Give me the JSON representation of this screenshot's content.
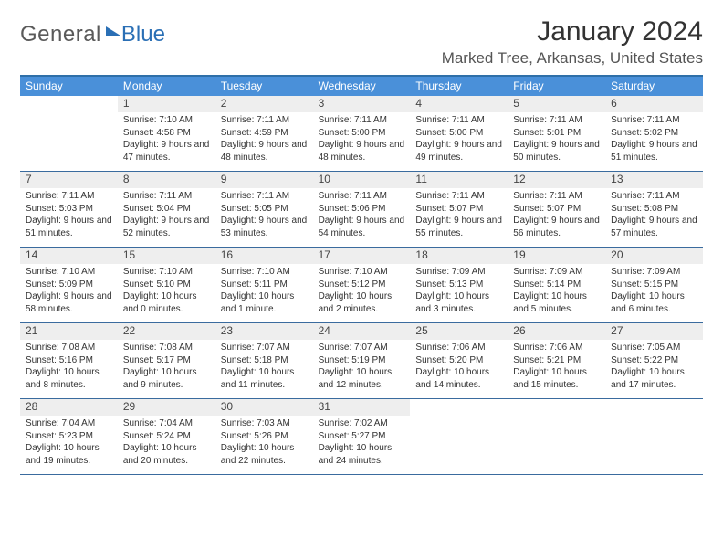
{
  "logo": {
    "part1": "General",
    "part2": "Blue"
  },
  "header": {
    "month_title": "January 2024",
    "location": "Marked Tree, Arkansas, United States"
  },
  "colors": {
    "header_bar": "#4a90d9",
    "border": "#3a6b9e",
    "date_bar_bg": "#eeeeee",
    "text": "#333333",
    "logo_gray": "#5a5a5a",
    "logo_blue": "#2a6fb5"
  },
  "day_names": [
    "Sunday",
    "Monday",
    "Tuesday",
    "Wednesday",
    "Thursday",
    "Friday",
    "Saturday"
  ],
  "weeks": [
    [
      {
        "date": "",
        "sunrise": "",
        "sunset": "",
        "daylight": ""
      },
      {
        "date": "1",
        "sunrise": "Sunrise: 7:10 AM",
        "sunset": "Sunset: 4:58 PM",
        "daylight": "Daylight: 9 hours and 47 minutes."
      },
      {
        "date": "2",
        "sunrise": "Sunrise: 7:11 AM",
        "sunset": "Sunset: 4:59 PM",
        "daylight": "Daylight: 9 hours and 48 minutes."
      },
      {
        "date": "3",
        "sunrise": "Sunrise: 7:11 AM",
        "sunset": "Sunset: 5:00 PM",
        "daylight": "Daylight: 9 hours and 48 minutes."
      },
      {
        "date": "4",
        "sunrise": "Sunrise: 7:11 AM",
        "sunset": "Sunset: 5:00 PM",
        "daylight": "Daylight: 9 hours and 49 minutes."
      },
      {
        "date": "5",
        "sunrise": "Sunrise: 7:11 AM",
        "sunset": "Sunset: 5:01 PM",
        "daylight": "Daylight: 9 hours and 50 minutes."
      },
      {
        "date": "6",
        "sunrise": "Sunrise: 7:11 AM",
        "sunset": "Sunset: 5:02 PM",
        "daylight": "Daylight: 9 hours and 51 minutes."
      }
    ],
    [
      {
        "date": "7",
        "sunrise": "Sunrise: 7:11 AM",
        "sunset": "Sunset: 5:03 PM",
        "daylight": "Daylight: 9 hours and 51 minutes."
      },
      {
        "date": "8",
        "sunrise": "Sunrise: 7:11 AM",
        "sunset": "Sunset: 5:04 PM",
        "daylight": "Daylight: 9 hours and 52 minutes."
      },
      {
        "date": "9",
        "sunrise": "Sunrise: 7:11 AM",
        "sunset": "Sunset: 5:05 PM",
        "daylight": "Daylight: 9 hours and 53 minutes."
      },
      {
        "date": "10",
        "sunrise": "Sunrise: 7:11 AM",
        "sunset": "Sunset: 5:06 PM",
        "daylight": "Daylight: 9 hours and 54 minutes."
      },
      {
        "date": "11",
        "sunrise": "Sunrise: 7:11 AM",
        "sunset": "Sunset: 5:07 PM",
        "daylight": "Daylight: 9 hours and 55 minutes."
      },
      {
        "date": "12",
        "sunrise": "Sunrise: 7:11 AM",
        "sunset": "Sunset: 5:07 PM",
        "daylight": "Daylight: 9 hours and 56 minutes."
      },
      {
        "date": "13",
        "sunrise": "Sunrise: 7:11 AM",
        "sunset": "Sunset: 5:08 PM",
        "daylight": "Daylight: 9 hours and 57 minutes."
      }
    ],
    [
      {
        "date": "14",
        "sunrise": "Sunrise: 7:10 AM",
        "sunset": "Sunset: 5:09 PM",
        "daylight": "Daylight: 9 hours and 58 minutes."
      },
      {
        "date": "15",
        "sunrise": "Sunrise: 7:10 AM",
        "sunset": "Sunset: 5:10 PM",
        "daylight": "Daylight: 10 hours and 0 minutes."
      },
      {
        "date": "16",
        "sunrise": "Sunrise: 7:10 AM",
        "sunset": "Sunset: 5:11 PM",
        "daylight": "Daylight: 10 hours and 1 minute."
      },
      {
        "date": "17",
        "sunrise": "Sunrise: 7:10 AM",
        "sunset": "Sunset: 5:12 PM",
        "daylight": "Daylight: 10 hours and 2 minutes."
      },
      {
        "date": "18",
        "sunrise": "Sunrise: 7:09 AM",
        "sunset": "Sunset: 5:13 PM",
        "daylight": "Daylight: 10 hours and 3 minutes."
      },
      {
        "date": "19",
        "sunrise": "Sunrise: 7:09 AM",
        "sunset": "Sunset: 5:14 PM",
        "daylight": "Daylight: 10 hours and 5 minutes."
      },
      {
        "date": "20",
        "sunrise": "Sunrise: 7:09 AM",
        "sunset": "Sunset: 5:15 PM",
        "daylight": "Daylight: 10 hours and 6 minutes."
      }
    ],
    [
      {
        "date": "21",
        "sunrise": "Sunrise: 7:08 AM",
        "sunset": "Sunset: 5:16 PM",
        "daylight": "Daylight: 10 hours and 8 minutes."
      },
      {
        "date": "22",
        "sunrise": "Sunrise: 7:08 AM",
        "sunset": "Sunset: 5:17 PM",
        "daylight": "Daylight: 10 hours and 9 minutes."
      },
      {
        "date": "23",
        "sunrise": "Sunrise: 7:07 AM",
        "sunset": "Sunset: 5:18 PM",
        "daylight": "Daylight: 10 hours and 11 minutes."
      },
      {
        "date": "24",
        "sunrise": "Sunrise: 7:07 AM",
        "sunset": "Sunset: 5:19 PM",
        "daylight": "Daylight: 10 hours and 12 minutes."
      },
      {
        "date": "25",
        "sunrise": "Sunrise: 7:06 AM",
        "sunset": "Sunset: 5:20 PM",
        "daylight": "Daylight: 10 hours and 14 minutes."
      },
      {
        "date": "26",
        "sunrise": "Sunrise: 7:06 AM",
        "sunset": "Sunset: 5:21 PM",
        "daylight": "Daylight: 10 hours and 15 minutes."
      },
      {
        "date": "27",
        "sunrise": "Sunrise: 7:05 AM",
        "sunset": "Sunset: 5:22 PM",
        "daylight": "Daylight: 10 hours and 17 minutes."
      }
    ],
    [
      {
        "date": "28",
        "sunrise": "Sunrise: 7:04 AM",
        "sunset": "Sunset: 5:23 PM",
        "daylight": "Daylight: 10 hours and 19 minutes."
      },
      {
        "date": "29",
        "sunrise": "Sunrise: 7:04 AM",
        "sunset": "Sunset: 5:24 PM",
        "daylight": "Daylight: 10 hours and 20 minutes."
      },
      {
        "date": "30",
        "sunrise": "Sunrise: 7:03 AM",
        "sunset": "Sunset: 5:26 PM",
        "daylight": "Daylight: 10 hours and 22 minutes."
      },
      {
        "date": "31",
        "sunrise": "Sunrise: 7:02 AM",
        "sunset": "Sunset: 5:27 PM",
        "daylight": "Daylight: 10 hours and 24 minutes."
      },
      {
        "date": "",
        "sunrise": "",
        "sunset": "",
        "daylight": ""
      },
      {
        "date": "",
        "sunrise": "",
        "sunset": "",
        "daylight": ""
      },
      {
        "date": "",
        "sunrise": "",
        "sunset": "",
        "daylight": ""
      }
    ]
  ]
}
